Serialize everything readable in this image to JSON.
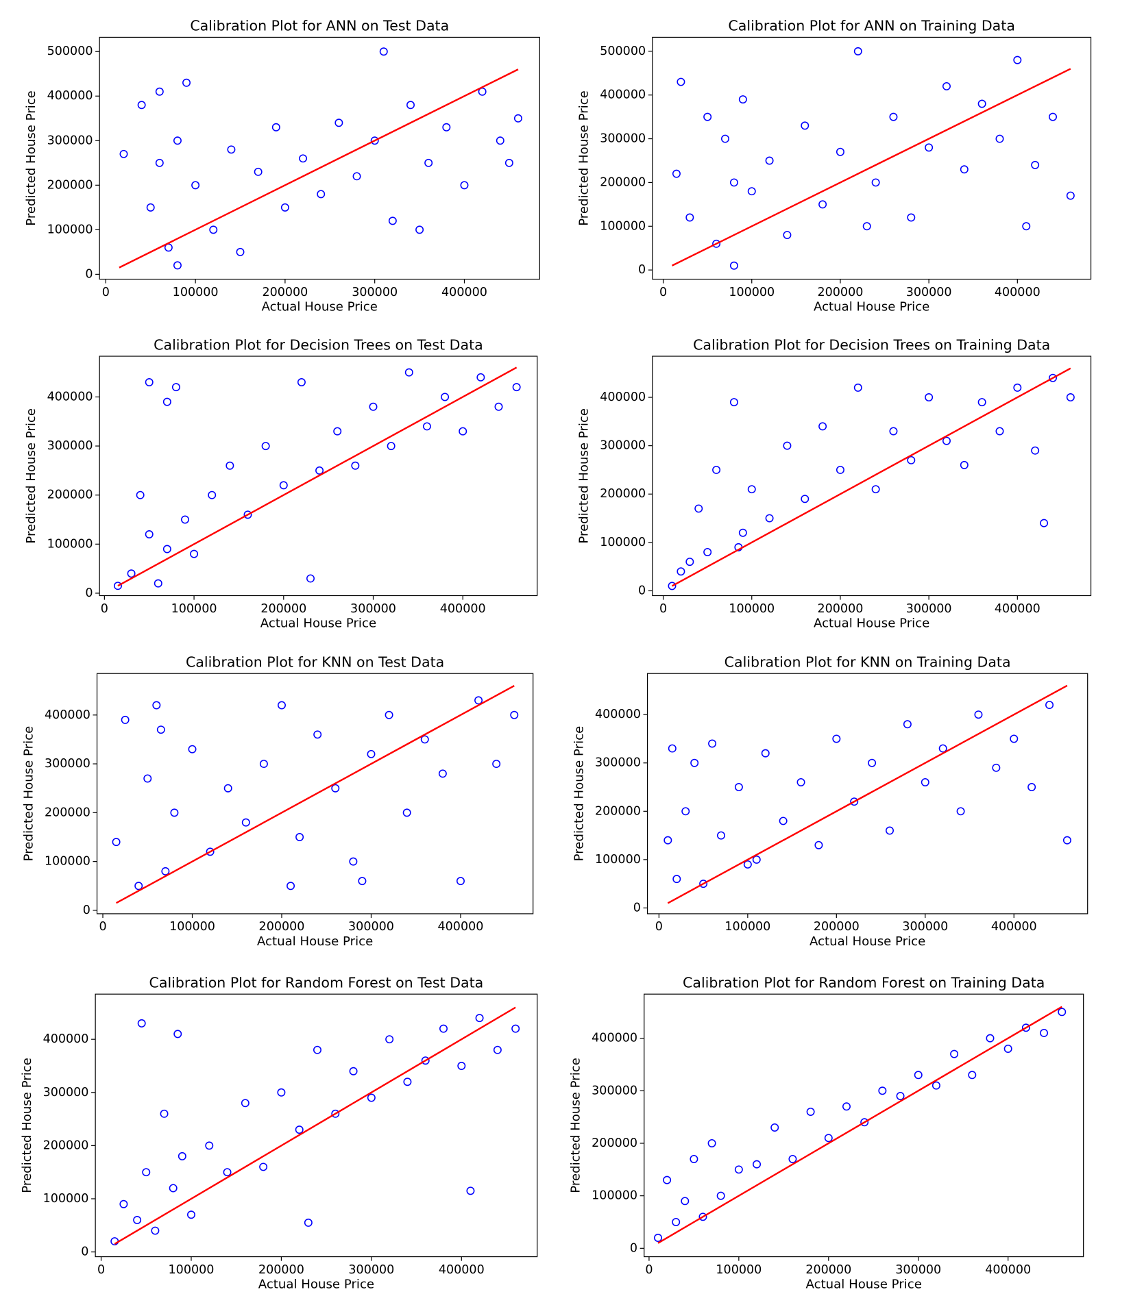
{
  "chart_data": [
    {
      "type": "scatter",
      "title": "Calibration Plot for ANN on Test Data",
      "x_label": "Actual House Price",
      "y_label": "Predicted House Price",
      "xlim": [
        -7000,
        484000
      ],
      "ylim": [
        -11000,
        532000
      ],
      "xticks": [
        0,
        100000,
        200000,
        300000,
        400000
      ],
      "yticks": [
        0,
        100000,
        200000,
        300000,
        400000,
        500000
      ],
      "marker_color": "#0000ff",
      "x": [
        20000,
        40000,
        50000,
        60000,
        70000,
        80000,
        90000,
        100000,
        120000,
        140000,
        150000,
        170000,
        190000,
        200000,
        220000,
        240000,
        260000,
        280000,
        300000,
        310000,
        320000,
        340000,
        360000,
        380000,
        400000,
        420000,
        440000,
        450000,
        460000,
        80000,
        60000,
        350000
      ],
      "y": [
        270000,
        380000,
        150000,
        410000,
        60000,
        300000,
        430000,
        200000,
        100000,
        280000,
        50000,
        230000,
        330000,
        150000,
        260000,
        180000,
        340000,
        220000,
        300000,
        500000,
        120000,
        380000,
        250000,
        330000,
        200000,
        410000,
        300000,
        250000,
        350000,
        20000,
        250000,
        100000
      ],
      "reference_line": {
        "color": "#ff0000",
        "x": [
          15000,
          460000
        ],
        "y": [
          15000,
          460000
        ]
      }
    },
    {
      "type": "scatter",
      "title": "Calibration Plot for ANN on Training Data",
      "x_label": "Actual House Price",
      "y_label": "Predicted House Price",
      "xlim": [
        -12200,
        483000
      ],
      "ylim": [
        -21000,
        532000
      ],
      "xticks": [
        0,
        100000,
        200000,
        300000,
        400000
      ],
      "yticks": [
        0,
        100000,
        200000,
        300000,
        400000,
        500000
      ],
      "marker_color": "#0000ff",
      "x": [
        15000,
        20000,
        30000,
        50000,
        60000,
        70000,
        80000,
        90000,
        100000,
        120000,
        140000,
        160000,
        180000,
        200000,
        220000,
        240000,
        260000,
        280000,
        300000,
        320000,
        340000,
        360000,
        380000,
        400000,
        420000,
        440000,
        460000,
        80000,
        230000,
        410000
      ],
      "y": [
        220000,
        430000,
        120000,
        350000,
        60000,
        300000,
        10000,
        390000,
        180000,
        250000,
        80000,
        330000,
        150000,
        270000,
        500000,
        200000,
        350000,
        120000,
        280000,
        420000,
        230000,
        380000,
        300000,
        480000,
        240000,
        350000,
        170000,
        200000,
        100000,
        100000
      ],
      "reference_line": {
        "color": "#ff0000",
        "x": [
          10000,
          460000
        ],
        "y": [
          10000,
          460000
        ]
      }
    },
    {
      "type": "scatter",
      "title": "Calibration Plot for Decision Trees on Test Data",
      "x_label": "Actual House Price",
      "y_label": "Predicted House Price",
      "xlim": [
        -5500,
        483000
      ],
      "ylim": [
        -5000,
        483000
      ],
      "xticks": [
        0,
        100000,
        200000,
        300000,
        400000
      ],
      "yticks": [
        0,
        100000,
        200000,
        300000,
        400000
      ],
      "marker_color": "#0000ff",
      "x": [
        15000,
        30000,
        40000,
        50000,
        60000,
        70000,
        80000,
        90000,
        100000,
        120000,
        140000,
        160000,
        180000,
        200000,
        220000,
        240000,
        260000,
        280000,
        300000,
        320000,
        340000,
        360000,
        380000,
        400000,
        420000,
        440000,
        460000,
        50000,
        70000,
        230000
      ],
      "y": [
        15000,
        40000,
        200000,
        120000,
        20000,
        90000,
        420000,
        150000,
        80000,
        200000,
        260000,
        160000,
        300000,
        220000,
        430000,
        250000,
        330000,
        260000,
        380000,
        300000,
        450000,
        340000,
        400000,
        330000,
        440000,
        380000,
        420000,
        430000,
        390000,
        30000
      ],
      "reference_line": {
        "color": "#ff0000",
        "x": [
          15000,
          460000
        ],
        "y": [
          15000,
          460000
        ]
      }
    },
    {
      "type": "scatter",
      "title": "Calibration Plot for Decision Trees on Training Data",
      "x_label": "Actual House Price",
      "y_label": "Predicted House Price",
      "xlim": [
        -12200,
        483000
      ],
      "ylim": [
        -10000,
        485000
      ],
      "xticks": [
        0,
        100000,
        200000,
        300000,
        400000
      ],
      "yticks": [
        0,
        100000,
        200000,
        300000,
        400000
      ],
      "marker_color": "#0000ff",
      "x": [
        10000,
        20000,
        30000,
        40000,
        50000,
        60000,
        80000,
        90000,
        100000,
        120000,
        140000,
        160000,
        180000,
        200000,
        220000,
        240000,
        260000,
        280000,
        300000,
        320000,
        340000,
        360000,
        380000,
        400000,
        420000,
        440000,
        460000,
        85000,
        430000
      ],
      "y": [
        10000,
        40000,
        60000,
        170000,
        80000,
        250000,
        390000,
        120000,
        210000,
        150000,
        300000,
        190000,
        340000,
        250000,
        420000,
        210000,
        330000,
        270000,
        400000,
        310000,
        260000,
        390000,
        330000,
        420000,
        290000,
        440000,
        400000,
        90000,
        140000
      ],
      "reference_line": {
        "color": "#ff0000",
        "x": [
          10000,
          460000
        ],
        "y": [
          10000,
          460000
        ]
      }
    },
    {
      "type": "scatter",
      "title": "Calibration Plot for KNN on Test Data",
      "x_label": "Actual House Price",
      "y_label": "Predicted House Price",
      "xlim": [
        -6500,
        481000
      ],
      "ylim": [
        -7000,
        485000
      ],
      "xticks": [
        0,
        100000,
        200000,
        300000,
        400000
      ],
      "yticks": [
        0,
        100000,
        200000,
        300000,
        400000
      ],
      "marker_color": "#0000ff",
      "x": [
        15000,
        25000,
        40000,
        50000,
        60000,
        70000,
        80000,
        100000,
        120000,
        140000,
        160000,
        180000,
        200000,
        220000,
        240000,
        260000,
        280000,
        300000,
        320000,
        340000,
        360000,
        380000,
        400000,
        420000,
        440000,
        460000,
        65000,
        210000,
        290000
      ],
      "y": [
        140000,
        390000,
        50000,
        270000,
        420000,
        80000,
        200000,
        330000,
        120000,
        250000,
        180000,
        300000,
        420000,
        150000,
        360000,
        250000,
        100000,
        320000,
        400000,
        200000,
        350000,
        280000,
        60000,
        430000,
        300000,
        400000,
        370000,
        50000,
        60000
      ],
      "reference_line": {
        "color": "#ff0000",
        "x": [
          15000,
          460000
        ],
        "y": [
          15000,
          460000
        ]
      }
    },
    {
      "type": "scatter",
      "title": "Calibration Plot for KNN on Training Data",
      "x_label": "Actual House Price",
      "y_label": "Predicted House Price",
      "xlim": [
        -13000,
        483000
      ],
      "ylim": [
        -12000,
        485000
      ],
      "xticks": [
        0,
        100000,
        200000,
        300000,
        400000
      ],
      "yticks": [
        0,
        100000,
        200000,
        300000,
        400000
      ],
      "marker_color": "#0000ff",
      "x": [
        10000,
        15000,
        20000,
        30000,
        40000,
        50000,
        60000,
        70000,
        90000,
        100000,
        120000,
        140000,
        160000,
        180000,
        200000,
        220000,
        240000,
        260000,
        280000,
        300000,
        320000,
        340000,
        360000,
        380000,
        400000,
        420000,
        440000,
        460000,
        110000
      ],
      "y": [
        140000,
        330000,
        60000,
        200000,
        300000,
        50000,
        340000,
        150000,
        250000,
        90000,
        320000,
        180000,
        260000,
        130000,
        350000,
        220000,
        300000,
        160000,
        380000,
        260000,
        330000,
        200000,
        400000,
        290000,
        350000,
        250000,
        420000,
        140000,
        100000
      ],
      "reference_line": {
        "color": "#ff0000",
        "x": [
          10000,
          460000
        ],
        "y": [
          10000,
          460000
        ]
      }
    },
    {
      "type": "scatter",
      "title": "Calibration Plot for Random Forest on Test Data",
      "x_label": "Actual House Price",
      "y_label": "Predicted House Price",
      "xlim": [
        -6400,
        484000
      ],
      "ylim": [
        -9000,
        485000
      ],
      "xticks": [
        0,
        100000,
        200000,
        300000,
        400000
      ],
      "yticks": [
        0,
        100000,
        200000,
        300000,
        400000
      ],
      "marker_color": "#0000ff",
      "x": [
        15000,
        25000,
        40000,
        50000,
        60000,
        70000,
        80000,
        90000,
        100000,
        120000,
        140000,
        160000,
        180000,
        200000,
        220000,
        230000,
        240000,
        260000,
        280000,
        300000,
        320000,
        340000,
        360000,
        380000,
        400000,
        410000,
        420000,
        440000,
        460000,
        45000,
        85000
      ],
      "y": [
        20000,
        90000,
        60000,
        150000,
        40000,
        260000,
        120000,
        180000,
        70000,
        200000,
        150000,
        280000,
        160000,
        300000,
        230000,
        55000,
        380000,
        260000,
        340000,
        290000,
        400000,
        320000,
        360000,
        420000,
        350000,
        115000,
        440000,
        380000,
        420000,
        430000,
        410000
      ],
      "reference_line": {
        "color": "#ff0000",
        "x": [
          15000,
          460000
        ],
        "y": [
          15000,
          460000
        ]
      }
    },
    {
      "type": "scatter",
      "title": "Calibration Plot for Random Forest on Training Data",
      "x_label": "Actual House Price",
      "y_label": "Predicted House Price",
      "xlim": [
        -5500,
        484000
      ],
      "ylim": [
        -16000,
        484000
      ],
      "xticks": [
        0,
        100000,
        200000,
        300000,
        400000
      ],
      "yticks": [
        0,
        100000,
        200000,
        300000,
        400000
      ],
      "marker_color": "#0000ff",
      "x": [
        10000,
        20000,
        30000,
        40000,
        50000,
        60000,
        70000,
        80000,
        100000,
        120000,
        140000,
        160000,
        180000,
        200000,
        220000,
        240000,
        260000,
        280000,
        300000,
        320000,
        340000,
        360000,
        380000,
        400000,
        420000,
        440000,
        460000
      ],
      "y": [
        20000,
        130000,
        50000,
        90000,
        170000,
        60000,
        200000,
        100000,
        150000,
        160000,
        230000,
        170000,
        260000,
        210000,
        270000,
        240000,
        300000,
        290000,
        330000,
        310000,
        370000,
        330000,
        400000,
        380000,
        420000,
        410000,
        450000
      ],
      "reference_line": {
        "color": "#ff0000",
        "x": [
          10000,
          460000
        ],
        "y": [
          10000,
          460000
        ]
      }
    }
  ]
}
